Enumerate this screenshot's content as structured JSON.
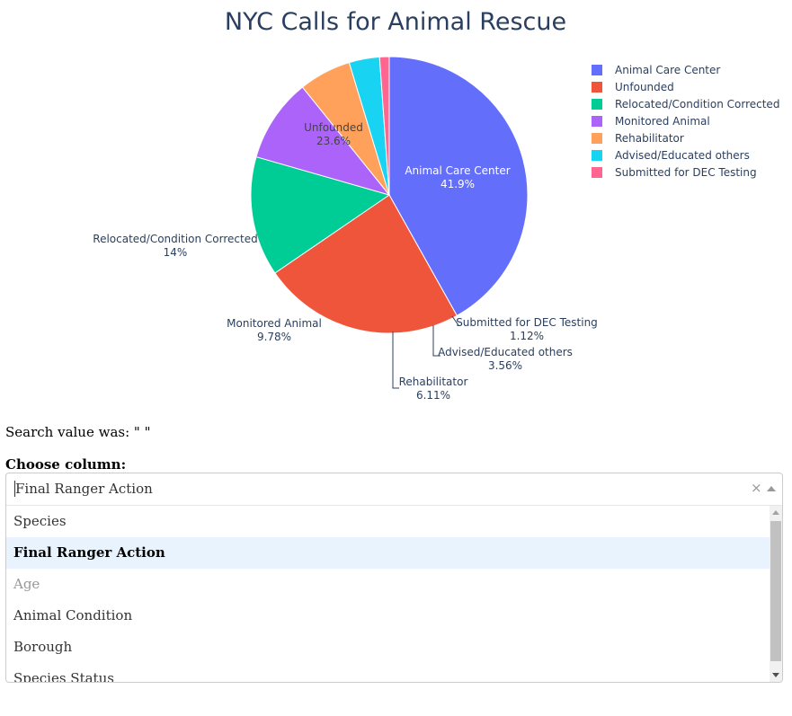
{
  "chart_data": {
    "type": "pie",
    "title": "NYC Calls for Animal Rescue",
    "legend_position": "right",
    "slices": [
      {
        "label": "Animal Care Center",
        "percent_label": "41.9%",
        "value": 41.9,
        "color": "#636efa"
      },
      {
        "label": "Unfounded",
        "percent_label": "23.6%",
        "value": 23.6,
        "color": "#ef553b"
      },
      {
        "label": "Relocated/Condition Corrected",
        "percent_label": "14%",
        "value": 14.0,
        "color": "#00cc96"
      },
      {
        "label": "Monitored Animal",
        "percent_label": "9.78%",
        "value": 9.78,
        "color": "#ab63fa"
      },
      {
        "label": "Rehabilitator",
        "percent_label": "6.11%",
        "value": 6.11,
        "color": "#ffa15a"
      },
      {
        "label": "Advised/Educated others",
        "percent_label": "3.56%",
        "value": 3.56,
        "color": "#19d3f3"
      },
      {
        "label": "Submitted for DEC Testing",
        "percent_label": "1.12%",
        "value": 1.12,
        "color": "#ff6692"
      }
    ]
  },
  "search": {
    "text": "Search value was: \" \""
  },
  "column_picker": {
    "label": "Choose column:",
    "selected_value": "Final Ranger Action",
    "clear_icon": "close-icon",
    "arrow_icon": "caret-up-icon",
    "options": [
      {
        "label": "Species",
        "state": "normal"
      },
      {
        "label": "Final Ranger Action",
        "state": "selected"
      },
      {
        "label": "Age",
        "state": "disabled"
      },
      {
        "label": "Animal Condition",
        "state": "normal"
      },
      {
        "label": "Borough",
        "state": "normal"
      },
      {
        "label": "Species Status",
        "state": "normal"
      }
    ]
  }
}
